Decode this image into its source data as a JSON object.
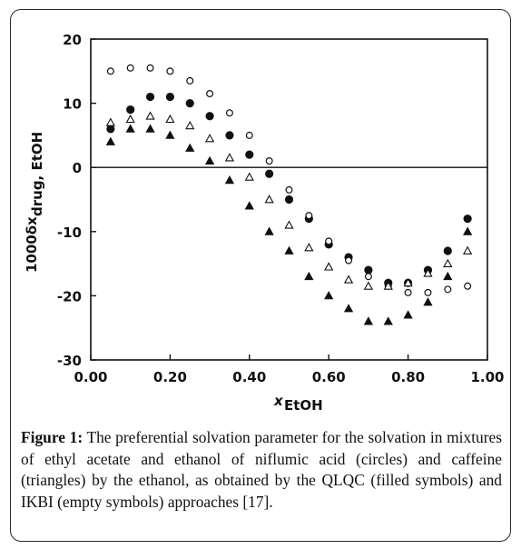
{
  "chart_data": {
    "type": "scatter",
    "title": "",
    "xlabel": "x",
    "xlabel_sub": "EtOH",
    "ylabel": "1000δx",
    "ylabel_sub": "drug, EtOH",
    "xlim": [
      0.0,
      1.0
    ],
    "ylim": [
      -30,
      20
    ],
    "xticks": [
      "0.00",
      "0.20",
      "0.40",
      "0.60",
      "0.80",
      "1.00"
    ],
    "yticks": [
      "20",
      "10",
      "0",
      "-10",
      "-20",
      "-30"
    ],
    "zero_line": true,
    "grid": false,
    "legend": "none",
    "series": [
      {
        "marker": "filled-circle",
        "x": [
          0.05,
          0.1,
          0.15,
          0.2,
          0.25,
          0.3,
          0.35,
          0.4,
          0.45,
          0.5,
          0.55,
          0.6,
          0.65,
          0.7,
          0.75,
          0.8,
          0.85,
          0.9,
          0.95
        ],
        "y": [
          6,
          9,
          11,
          11,
          10,
          8,
          5,
          2,
          -1,
          -5,
          -8,
          -12,
          -14,
          -16,
          -18,
          -18,
          -16,
          -13,
          -8
        ]
      },
      {
        "marker": "open-circle",
        "x": [
          0.05,
          0.1,
          0.15,
          0.2,
          0.25,
          0.3,
          0.35,
          0.4,
          0.45,
          0.5,
          0.55,
          0.6,
          0.65,
          0.7,
          0.75,
          0.8,
          0.85,
          0.9,
          0.95
        ],
        "y": [
          15,
          15.5,
          15.5,
          15,
          13.5,
          11.5,
          8.5,
          5,
          1,
          -3.5,
          -7.5,
          -11.5,
          -14.5,
          -17,
          -18.5,
          -19.5,
          -19.5,
          -19,
          -18.5
        ]
      },
      {
        "marker": "open-triangle",
        "x": [
          0.05,
          0.1,
          0.15,
          0.2,
          0.25,
          0.3,
          0.35,
          0.4,
          0.45,
          0.5,
          0.55,
          0.6,
          0.65,
          0.7,
          0.75,
          0.8,
          0.85,
          0.9,
          0.95
        ],
        "y": [
          7,
          7.5,
          8,
          7.5,
          6.5,
          4.5,
          1.5,
          -1.5,
          -5,
          -9,
          -12.5,
          -15.5,
          -17.5,
          -18.5,
          -18.5,
          -18,
          -16.5,
          -15,
          -13
        ]
      },
      {
        "marker": "filled-triangle",
        "x": [
          0.05,
          0.1,
          0.15,
          0.2,
          0.25,
          0.3,
          0.35,
          0.4,
          0.45,
          0.5,
          0.55,
          0.6,
          0.65,
          0.7,
          0.75,
          0.8,
          0.85,
          0.9,
          0.95
        ],
        "y": [
          4,
          6,
          6,
          5,
          3,
          1,
          -2,
          -6,
          -10,
          -13,
          -17,
          -20,
          -22,
          -24,
          -24,
          -23,
          -21,
          -17,
          -10
        ]
      }
    ],
    "colors": {
      "ink": "#111111",
      "frame": "#2b2b2b"
    }
  },
  "caption": {
    "label": "Figure 1:",
    "text": " The preferential solvation parameter for the solvation in mixtures of ethyl acetate and ethanol of niflumic acid (circles) and caffeine (triangles) by the ethanol, as obtained by the QLQC (filled symbols) and IKBI (empty symbols) approaches [17]."
  }
}
